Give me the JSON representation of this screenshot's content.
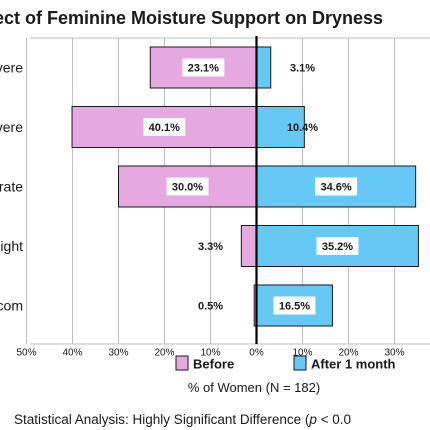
{
  "chart_data": {
    "type": "bar",
    "layout": "diverging-horizontal",
    "title": "ect of Feminine Moisture Support on Dryness",
    "categories": [
      "vere",
      "vere",
      "rate",
      "ight",
      "com"
    ],
    "series": [
      {
        "name": "Before",
        "color": "#e6a8e0",
        "values": [
          23.1,
          40.1,
          30.0,
          3.3,
          0.5
        ],
        "direction": "left"
      },
      {
        "name": "After 1 month",
        "color": "#66c8f5",
        "values": [
          3.1,
          10.4,
          34.6,
          35.2,
          16.5
        ],
        "direction": "right"
      }
    ],
    "value_labels": {
      "before": [
        "23.1%",
        "40.1%",
        "30.0%",
        "3.3%",
        "0.5%"
      ],
      "after": [
        "3.1%",
        "10.4%",
        "34.6%",
        "35.2%",
        "16.5%"
      ]
    },
    "xticks": [
      "50%",
      "40%",
      "30%",
      "20%",
      "10%",
      "0%",
      "10%",
      "20%",
      "30%",
      "4"
    ],
    "xlabel": "% of Women (N = 182)",
    "xlim": [
      -50,
      40
    ],
    "grid": true,
    "legend_position": "bottom",
    "footnote": {
      "prefix": "Statistical Analysis: Highly Significant Difference (",
      "italic": "p",
      "suffix": " < 0.0"
    }
  }
}
